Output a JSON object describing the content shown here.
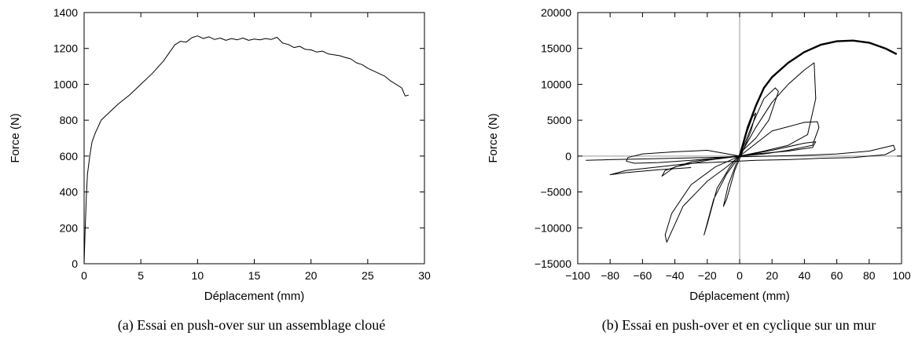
{
  "chart_data": [
    {
      "type": "line",
      "caption": "(a) Essai en push-over sur un assemblage cloué",
      "xlabel": "Déplacement (mm)",
      "ylabel": "Force (N)",
      "xlim": [
        0,
        30
      ],
      "ylim": [
        0,
        1400
      ],
      "xticks": [
        0,
        5,
        10,
        15,
        20,
        25,
        30
      ],
      "yticks": [
        0,
        200,
        400,
        600,
        800,
        1000,
        1200,
        1400
      ],
      "grid": false,
      "series": [
        {
          "x": [
            0,
            0.1,
            0.2,
            0.3,
            0.5,
            0.7,
            1.0,
            1.5,
            2.0,
            2.5,
            3.0,
            4.0,
            5.0,
            6.0,
            7.0,
            8.0,
            8.5,
            9.0,
            9.5,
            10.0,
            10.5,
            11.0,
            11.5,
            12.0,
            12.5,
            13.0,
            13.5,
            14.0,
            14.5,
            15.0,
            15.5,
            16.0,
            16.5,
            17.0,
            17.5,
            18.0,
            18.5,
            19.0,
            19.5,
            20.0,
            20.5,
            21.0,
            21.5,
            22.0,
            22.5,
            23.0,
            23.5,
            24.0,
            24.5,
            25.0,
            25.5,
            26.0,
            26.5,
            27.0,
            27.5,
            28.0,
            28.3,
            28.6
          ],
          "y": [
            0,
            200,
            380,
            500,
            600,
            680,
            730,
            800,
            830,
            860,
            890,
            940,
            1000,
            1060,
            1130,
            1220,
            1240,
            1235,
            1260,
            1270,
            1255,
            1265,
            1250,
            1258,
            1245,
            1255,
            1248,
            1258,
            1245,
            1252,
            1248,
            1255,
            1250,
            1262,
            1230,
            1222,
            1205,
            1212,
            1195,
            1192,
            1180,
            1185,
            1170,
            1165,
            1160,
            1150,
            1142,
            1120,
            1110,
            1090,
            1075,
            1060,
            1045,
            1020,
            1000,
            980,
            935,
            940
          ]
        }
      ]
    },
    {
      "type": "line",
      "caption": "(b) Essai en push-over et en cyclique sur un mur",
      "xlabel": "Déplacement (mm)",
      "ylabel": "Force (N)",
      "xlim": [
        -100,
        100
      ],
      "ylim": [
        -15000,
        20000
      ],
      "xticks": [
        -100,
        -80,
        -60,
        -40,
        -20,
        0,
        20,
        40,
        60,
        80,
        100
      ],
      "yticks": [
        -15000,
        -10000,
        -5000,
        0,
        5000,
        10000,
        15000,
        20000
      ],
      "grid": false,
      "zero_lines": true,
      "series": [
        {
          "style": "thick",
          "x": [
            0,
            5,
            10,
            15,
            20,
            25,
            30,
            40,
            50,
            60,
            70,
            80,
            90,
            97
          ],
          "y": [
            0,
            4000,
            7000,
            9500,
            11000,
            12000,
            13000,
            14500,
            15500,
            16000,
            16100,
            15800,
            15000,
            14200
          ]
        },
        {
          "style": "thin",
          "x": [
            0,
            4,
            8,
            10,
            7,
            2,
            -3,
            -8,
            -10,
            -7,
            -2,
            0
          ],
          "y": [
            0,
            3000,
            5500,
            6000,
            3500,
            700,
            -2000,
            -6000,
            -7000,
            -4000,
            -1000,
            0
          ]
        },
        {
          "style": "thin",
          "x": [
            0,
            8,
            15,
            22,
            24,
            18,
            10,
            2,
            -6,
            -14,
            -20,
            -22,
            -16,
            -8,
            0
          ],
          "y": [
            0,
            4500,
            8000,
            9500,
            9000,
            5000,
            2500,
            800,
            -1500,
            -4500,
            -9500,
            -11000,
            -6000,
            -2500,
            0
          ]
        },
        {
          "style": "thin",
          "x": [
            0,
            10,
            20,
            30,
            40,
            46,
            47,
            42,
            30,
            15,
            0,
            -15,
            -30,
            -42,
            -46,
            -45,
            -35,
            -20,
            -8,
            0
          ],
          "y": [
            0,
            4000,
            7500,
            10000,
            12000,
            13000,
            8000,
            3000,
            1500,
            700,
            0,
            -1500,
            -4000,
            -8000,
            -11000,
            -12000,
            -7000,
            -3500,
            -1500,
            0
          ]
        },
        {
          "style": "thin",
          "x": [
            0,
            20,
            40,
            48,
            49,
            45,
            30,
            15,
            0,
            -20,
            -40,
            -48,
            -46,
            -30,
            -15,
            0
          ],
          "y": [
            0,
            3500,
            4700,
            4800,
            4000,
            1500,
            800,
            300,
            0,
            -600,
            -1500,
            -2800,
            -2000,
            -800,
            -300,
            0
          ]
        },
        {
          "style": "thin",
          "x": [
            0,
            20,
            40,
            47,
            45,
            30,
            10,
            -10,
            -30,
            -50,
            -65,
            -70,
            -69,
            -60,
            -40,
            -20,
            0
          ],
          "y": [
            0,
            800,
            1800,
            2000,
            1200,
            700,
            300,
            -200,
            -600,
            -900,
            -1000,
            -700,
            -200,
            300,
            600,
            800,
            0
          ]
        },
        {
          "style": "thin",
          "x": [
            -95,
            -80,
            -60,
            -40,
            -20,
            0,
            20,
            40,
            60,
            80,
            95,
            96,
            90,
            70,
            50,
            30,
            10,
            -10,
            -30,
            -50,
            -70,
            -80,
            -70,
            -50,
            -30
          ],
          "y": [
            -600,
            -500,
            -400,
            -300,
            -200,
            -100,
            0,
            100,
            300,
            700,
            1500,
            900,
            200,
            -200,
            -300,
            -500,
            -600,
            -800,
            -1000,
            -1500,
            -2000,
            -2600,
            -2300,
            -1900,
            -1600
          ]
        }
      ]
    }
  ]
}
